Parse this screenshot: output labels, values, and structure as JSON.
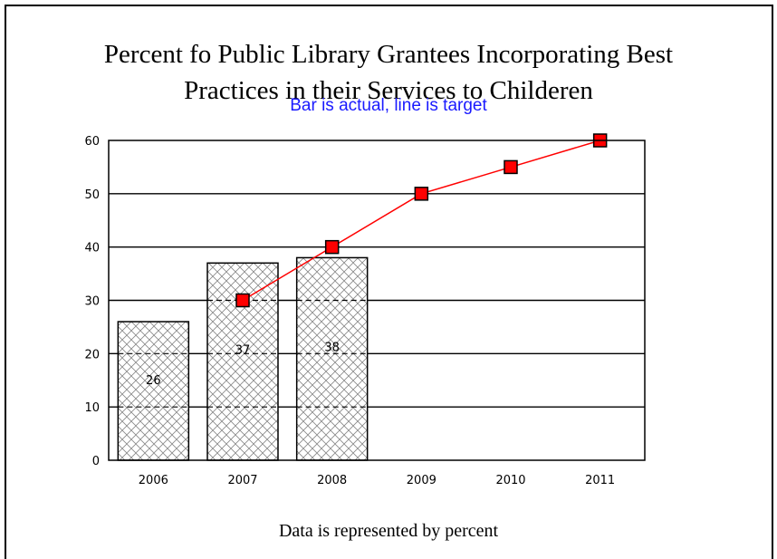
{
  "chart_data": {
    "type": "bar",
    "title_line1": "Percent fo Public Library Grantees Incorporating Best",
    "title_line2": "Practices in their Services to Childeren",
    "subtitle": "Bar is actual, line is target",
    "footnote": "Data is represented by percent",
    "categories": [
      "2006",
      "2007",
      "2008",
      "2009",
      "2010",
      "2011"
    ],
    "series": [
      {
        "values": [
          26,
          37,
          38,
          null,
          null,
          null
        ],
        "kind": "bar",
        "fill": "crosshatch"
      },
      {
        "values": [
          null,
          30,
          40,
          50,
          55,
          60
        ],
        "kind": "line",
        "color": "#ff0000",
        "marker": "square"
      }
    ],
    "bar_labels": [
      "26",
      "37",
      "38"
    ],
    "yticks": [
      "0",
      "10",
      "20",
      "30",
      "40",
      "50",
      "60"
    ],
    "ylim": [
      0,
      60
    ],
    "grid": true,
    "colors": {
      "subtitle": "#1a1aff",
      "line": "#ff0000",
      "marker_fill": "#ff0000"
    }
  }
}
